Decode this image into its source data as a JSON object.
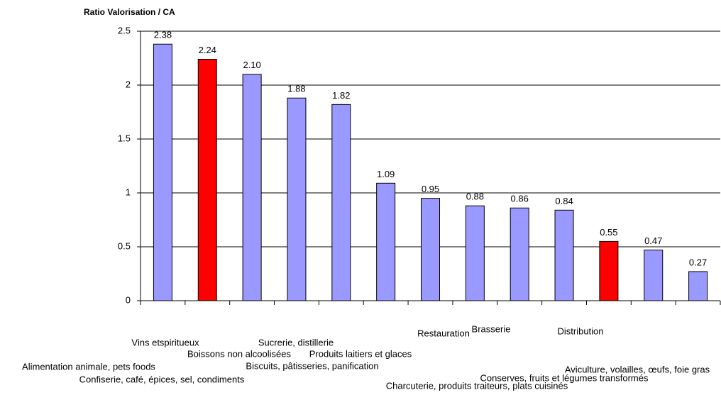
{
  "chart_data": {
    "type": "bar",
    "title": "Ratio Valorisation / CA",
    "categories": [
      "Vins etspiritueux",
      "Boissons non alcoolisées",
      "Alimentation animale, pets foods",
      "Confiserie, café, épices, sel, condiments",
      "Sucrerie, distillerie",
      "Biscuits, pâtisseries, panification",
      "Produits laitiers et glaces",
      "Restauration",
      "Brasserie",
      "Charcuterie, produits traiteurs, plats cuisinés",
      "Distribution",
      "Conserves, fruits et légumes transformés",
      "Aviculture, volailles, œufs, foie gras"
    ],
    "values": [
      2.38,
      2.24,
      2.1,
      1.88,
      1.82,
      1.09,
      0.95,
      0.88,
      0.86,
      0.84,
      0.55,
      0.47,
      0.27
    ],
    "value_labels": [
      "2.38",
      "2.24",
      "2.10",
      "1.88",
      "1.82",
      "1.09",
      "0.95",
      "0.88",
      "0.86",
      "0.84",
      "0.55",
      "0.47",
      "0.27"
    ],
    "colors": [
      "#9999ff",
      "#ff0000",
      "#9999ff",
      "#9999ff",
      "#9999ff",
      "#9999ff",
      "#9999ff",
      "#9999ff",
      "#9999ff",
      "#9999ff",
      "#ff0000",
      "#9999ff",
      "#9999ff"
    ],
    "ylim": [
      0,
      2.5
    ],
    "yticks": [
      0,
      0.5,
      1,
      1.5,
      2,
      2.5
    ],
    "grid": true
  }
}
